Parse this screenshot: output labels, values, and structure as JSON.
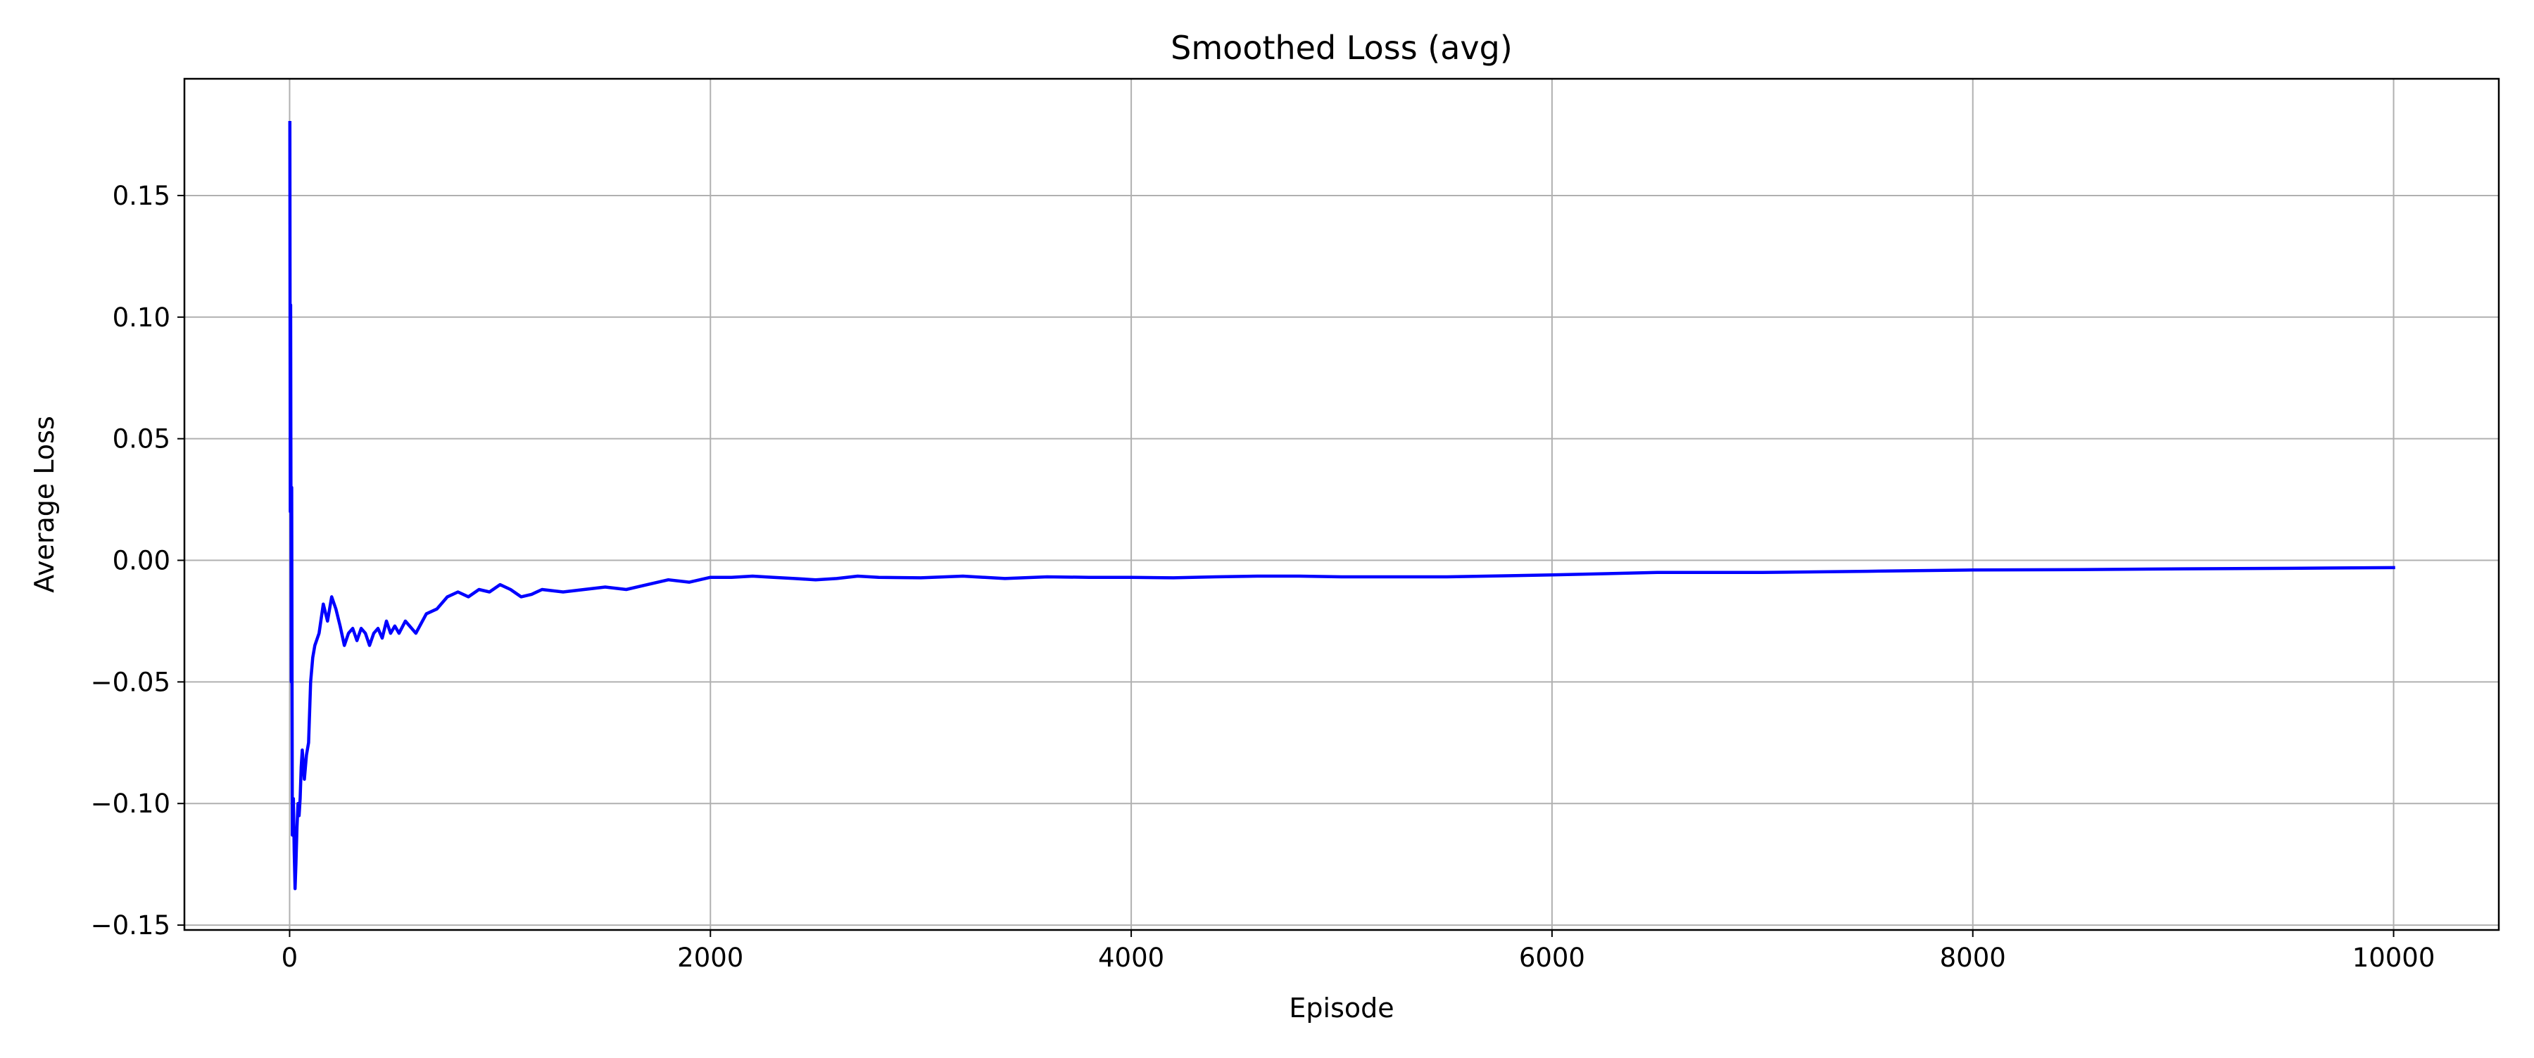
{
  "chart_data": {
    "type": "line",
    "title": "Smoothed Loss (avg)",
    "xlabel": "Episode",
    "ylabel": "Average Loss",
    "xlim": [
      -500,
      10500
    ],
    "ylim": [
      -0.152,
      0.198
    ],
    "xticks": [
      0,
      2000,
      4000,
      6000,
      8000,
      10000
    ],
    "xtick_labels": [
      "0",
      "2000",
      "4000",
      "6000",
      "8000",
      "10000"
    ],
    "yticks": [
      -0.15,
      -0.1,
      -0.05,
      0.0,
      0.05,
      0.1,
      0.15
    ],
    "ytick_labels": [
      "−0.15",
      "−0.10",
      "−0.05",
      "0.00",
      "0.05",
      "0.10",
      "0.15"
    ],
    "grid": true,
    "line_color": "#0000ff",
    "series": [
      {
        "x": [
          1,
          3,
          5,
          8,
          10,
          13,
          15,
          18,
          22,
          26,
          30,
          35,
          40,
          45,
          50,
          55,
          60,
          70,
          80,
          90,
          100,
          110,
          120,
          140,
          160,
          180,
          200,
          220,
          240,
          260,
          280,
          300,
          320,
          340,
          360,
          380,
          400,
          420,
          440,
          460,
          480,
          500,
          520,
          550,
          600,
          650,
          700,
          750,
          800,
          850,
          900,
          950,
          1000,
          1050,
          1100,
          1150,
          1200,
          1300,
          1400,
          1500,
          1600,
          1700,
          1800,
          1900,
          2000,
          2100,
          2200,
          2300,
          2400,
          2500,
          2600,
          2700,
          2800,
          3000,
          3200,
          3400,
          3600,
          3800,
          4000,
          4200,
          4400,
          4600,
          4800,
          5000,
          5500,
          6000,
          6500,
          7000,
          7500,
          8000,
          8500,
          9000,
          9500,
          10000
        ],
        "y": [
          0.18,
          0.02,
          0.105,
          -0.05,
          0.03,
          -0.113,
          -0.1,
          -0.098,
          -0.12,
          -0.135,
          -0.125,
          -0.11,
          -0.1,
          -0.105,
          -0.098,
          -0.085,
          -0.078,
          -0.09,
          -0.08,
          -0.075,
          -0.05,
          -0.04,
          -0.035,
          -0.03,
          -0.018,
          -0.025,
          -0.015,
          -0.02,
          -0.027,
          -0.035,
          -0.03,
          -0.028,
          -0.033,
          -0.028,
          -0.03,
          -0.035,
          -0.03,
          -0.028,
          -0.032,
          -0.025,
          -0.03,
          -0.027,
          -0.03,
          -0.025,
          -0.03,
          -0.022,
          -0.02,
          -0.015,
          -0.013,
          -0.015,
          -0.012,
          -0.013,
          -0.01,
          -0.012,
          -0.015,
          -0.014,
          -0.012,
          -0.013,
          -0.012,
          -0.011,
          -0.012,
          -0.01,
          -0.008,
          -0.009,
          -0.007,
          -0.007,
          -0.0065,
          -0.007,
          -0.0075,
          -0.008,
          -0.0075,
          -0.0065,
          -0.007,
          -0.0072,
          -0.0065,
          -0.0075,
          -0.0068,
          -0.007,
          -0.007,
          -0.0072,
          -0.0068,
          -0.0065,
          -0.0065,
          -0.0068,
          -0.0068,
          -0.006,
          -0.005,
          -0.005,
          -0.0045,
          -0.004,
          -0.0038,
          -0.0035,
          -0.0033,
          -0.003
        ]
      }
    ]
  }
}
